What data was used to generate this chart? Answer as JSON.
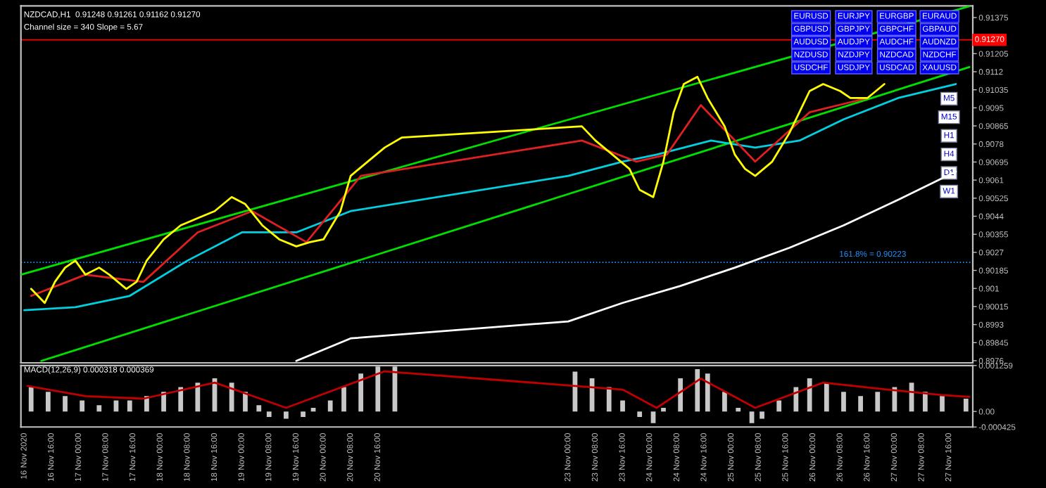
{
  "chart_data": [
    {
      "type": "line",
      "title": "NZDCAD,H1  0.91248 0.91261 0.91162 0.91270",
      "subtitle": "Channel size = 340 Slope = 5.67",
      "xlim": [
        "2020-11-16T07:00",
        "2020-11-27T23:00"
      ],
      "ylim": [
        0.8975,
        0.9143
      ],
      "tick_labels": "y",
      "yticks": [
        0.8976,
        0.89845,
        0.8993,
        0.90015,
        0.901,
        0.90185,
        0.9027,
        0.90355,
        0.9044,
        0.90525,
        0.9061,
        0.90695,
        0.9078,
        0.90865,
        0.9095,
        0.91035,
        0.9112,
        0.91205,
        0.91375
      ],
      "series": [
        {
          "color": "#00e000",
          "x": [
            "2020-11-16T07:00",
            "2020-11-27T22:00"
          ],
          "values": [
            0.90165,
            0.91428
          ]
        },
        {
          "color": "#00e000",
          "x": [
            "2020-11-16T13:00",
            "2020-11-27T22:00"
          ],
          "values": [
            0.89759,
            0.91142
          ]
        },
        {
          "color": "#ffffff",
          "x": [
            "2020-11-19T16:00",
            "2020-11-20T08:00",
            "2020-11-23T00:00",
            "2020-11-23T16:00",
            "2020-11-24T09:00",
            "2020-11-25T01:00",
            "2020-11-25T17:00",
            "2020-11-26T09:00",
            "2020-11-27T01:00",
            "2020-11-27T18:00"
          ],
          "values": [
            0.89759,
            0.89865,
            0.89945,
            0.90032,
            0.90112,
            0.90198,
            0.90291,
            0.90397,
            0.90517,
            0.9065
          ]
        },
        {
          "color": "#00d0e0",
          "x": [
            "2020-11-16T08:00",
            "2020-11-16T23:00",
            "2020-11-17T15:00",
            "2020-11-18T08:00",
            "2020-11-19T00:00",
            "2020-11-19T16:00",
            "2020-11-20T08:00",
            "2020-11-23T00:00",
            "2020-11-23T16:00",
            "2020-11-24T02:00",
            "2020-11-24T18:00",
            "2020-11-25T07:00",
            "2020-11-25T20:00",
            "2020-11-26T09:00",
            "2020-11-27T01:00",
            "2020-11-27T18:00"
          ],
          "values": [
            0.89998,
            0.90012,
            0.90065,
            0.90231,
            0.90364,
            0.90364,
            0.90464,
            0.9063,
            0.90697,
            0.9073,
            0.90796,
            0.90763,
            0.90796,
            0.90896,
            0.90996,
            0.91062
          ]
        },
        {
          "color": "#e02020",
          "x": [
            "2020-11-16T10:00",
            "2020-11-17T02:00",
            "2020-11-17T19:00",
            "2020-11-18T11:00",
            "2020-11-19T03:00",
            "2020-11-19T19:00",
            "2020-11-20T11:00",
            "2020-11-23T04:00",
            "2020-11-23T20:00",
            "2020-11-24T05:00",
            "2020-11-24T15:00",
            "2020-11-25T07:00",
            "2020-11-25T23:00",
            "2020-11-26T16:00"
          ],
          "values": [
            0.90065,
            0.90165,
            0.90131,
            0.90364,
            0.90464,
            0.90318,
            0.9063,
            0.90796,
            0.90697,
            0.9073,
            0.90963,
            0.90697,
            0.90929,
            0.90996
          ]
        },
        {
          "color": "#ffff00",
          "x": [
            "2020-11-16T10:00",
            "2020-11-16T14:00",
            "2020-11-16T17:00",
            "2020-11-16T20:00",
            "2020-11-16T23:00",
            "2020-11-17T02:00",
            "2020-11-17T06:00",
            "2020-11-17T09:00",
            "2020-11-17T14:00",
            "2020-11-17T17:00",
            "2020-11-17T20:00",
            "2020-11-18T01:00",
            "2020-11-18T06:00",
            "2020-11-18T11:00",
            "2020-11-18T16:00",
            "2020-11-18T21:00",
            "2020-11-19T01:00",
            "2020-11-19T06:00",
            "2020-11-19T11:00",
            "2020-11-19T16:00",
            "2020-11-19T20:00",
            "2020-11-20T00:00",
            "2020-11-20T05:00",
            "2020-11-20T08:00",
            "2020-11-20T13:00",
            "2020-11-20T18:00",
            "2020-11-20T23:00",
            "2020-11-23T04:00",
            "2020-11-23T08:00",
            "2020-11-23T13:00",
            "2020-11-23T18:00",
            "2020-11-23T21:00",
            "2020-11-24T01:00",
            "2020-11-24T04:00",
            "2020-11-24T07:00",
            "2020-11-24T10:00",
            "2020-11-24T14:00",
            "2020-11-24T17:00",
            "2020-11-24T22:00",
            "2020-11-25T01:00",
            "2020-11-25T04:00",
            "2020-11-25T07:00",
            "2020-11-25T12:00",
            "2020-11-25T17:00",
            "2020-11-25T20:00",
            "2020-11-25T23:00",
            "2020-11-26T03:00",
            "2020-11-26T08:00",
            "2020-11-26T11:00",
            "2020-11-26T16:00",
            "2020-11-26T21:00"
          ],
          "values": [
            0.90098,
            0.90032,
            0.90131,
            0.90198,
            0.90231,
            0.90165,
            0.90198,
            0.90165,
            0.90098,
            0.90131,
            0.90231,
            0.90331,
            0.90397,
            0.90431,
            0.90464,
            0.9053,
            0.90497,
            0.90397,
            0.90331,
            0.90298,
            0.90318,
            0.90331,
            0.90464,
            0.9063,
            0.90697,
            0.90763,
            0.9081,
            0.90863,
            0.90796,
            0.9073,
            0.90663,
            0.90564,
            0.9053,
            0.90697,
            0.90929,
            0.91062,
            0.91096,
            0.90996,
            0.90863,
            0.9073,
            0.90663,
            0.9063,
            0.90697,
            0.9083,
            0.90929,
            0.91029,
            0.91062,
            0.91029,
            0.90996,
            0.90996,
            0.91062
          ]
        }
      ],
      "ref_lines": [
        {
          "axis": "y",
          "value": 0.90223,
          "label": "161.8% = 0.90223",
          "color": "#1e90ff",
          "line_style": "dotted"
        },
        {
          "axis": "y",
          "value": 0.9127,
          "label": "0.91270",
          "color": "#ff0000"
        }
      ],
      "annotations": [
        "EURUSD",
        "EURJPY",
        "EURGBP",
        "EURAUD",
        "GBPUSD",
        "GBPJPY",
        "GBPCHF",
        "GBPAUD",
        "AUDUSD",
        "AUDJPY",
        "AUDCHF",
        "AUDNZD",
        "NZDUSD",
        "NZDJPY",
        "NZDCAD",
        "NZDCHF",
        "USDCHF",
        "USDJPY",
        "USDCAD",
        "XAUUSD",
        "M5",
        "M15",
        "H1",
        "H4",
        "D1",
        "W1"
      ]
    },
    {
      "type": "bar",
      "title": "MACD(12,26,9) 0.000318 0.000369",
      "xlim": [
        "2020-11-16T07:00",
        "2020-11-27T23:00"
      ],
      "ylim": [
        -0.000425,
        0.001259
      ],
      "yticks": [
        -0.000425,
        {
          "value": 0,
          "label": "0.00"
        },
        0.001259
      ],
      "xticks": [
        {
          "value": "2020-11-16T08:00",
          "label": "16 Nov 2020"
        },
        {
          "value": "2020-11-16T16:00",
          "label": "16 Nov 16:00"
        },
        {
          "value": "2020-11-17T00:00",
          "label": "17 Nov 00:00"
        },
        {
          "value": "2020-11-17T08:00",
          "label": "17 Nov 08:00"
        },
        {
          "value": "2020-11-17T16:00",
          "label": "17 Nov 16:00"
        },
        {
          "value": "2020-11-18T00:00",
          "label": "18 Nov 00:00"
        },
        {
          "value": "2020-11-18T08:00",
          "label": "18 Nov 08:00"
        },
        {
          "value": "2020-11-18T16:00",
          "label": "18 Nov 16:00"
        },
        {
          "value": "2020-11-19T00:00",
          "label": "19 Nov 00:00"
        },
        {
          "value": "2020-11-19T08:00",
          "label": "19 Nov 08:00"
        },
        {
          "value": "2020-11-19T16:00",
          "label": "19 Nov 16:00"
        },
        {
          "value": "2020-11-20T00:00",
          "label": "20 Nov 00:00"
        },
        {
          "value": "2020-11-20T08:00",
          "label": "20 Nov 08:00"
        },
        {
          "value": "2020-11-20T16:00",
          "label": "20 Nov 16:00"
        },
        {
          "value": "2020-11-23T00:00",
          "label": "23 Nov 00:00"
        },
        {
          "value": "2020-11-23T08:00",
          "label": "23 Nov 08:00"
        },
        {
          "value": "2020-11-23T16:00",
          "label": "23 Nov 16:00"
        },
        {
          "value": "2020-11-24T00:00",
          "label": "24 Nov 00:00"
        },
        {
          "value": "2020-11-24T08:00",
          "label": "24 Nov 08:00"
        },
        {
          "value": "2020-11-24T16:00",
          "label": "24 Nov 16:00"
        },
        {
          "value": "2020-11-25T00:00",
          "label": "25 Nov 00:00"
        },
        {
          "value": "2020-11-25T08:00",
          "label": "25 Nov 08:00"
        },
        {
          "value": "2020-11-25T16:00",
          "label": "25 Nov 16:00"
        },
        {
          "value": "2020-11-26T00:00",
          "label": "26 Nov 00:00"
        },
        {
          "value": "2020-11-26T08:00",
          "label": "26 Nov 08:00"
        },
        {
          "value": "2020-11-26T16:00",
          "label": "26 Nov 16:00"
        },
        {
          "value": "2020-11-27T00:00",
          "label": "27 Nov 00:00"
        },
        {
          "value": "2020-11-27T08:00",
          "label": "27 Nov 08:00"
        },
        {
          "value": "2020-11-27T16:00",
          "label": "27 Nov 16:00"
        }
      ],
      "series": [
        {
          "color": "#c8c8c8",
          "x": [
            "2020-11-16T10:00",
            "2020-11-16T15:00",
            "2020-11-16T20:00",
            "2020-11-17T01:00",
            "2020-11-17T06:00",
            "2020-11-17T11:00",
            "2020-11-17T15:00",
            "2020-11-17T20:00",
            "2020-11-18T01:00",
            "2020-11-18T06:00",
            "2020-11-18T11:00",
            "2020-11-18T16:00",
            "2020-11-18T21:00",
            "2020-11-19T01:00",
            "2020-11-19T05:00",
            "2020-11-19T08:00",
            "2020-11-19T13:00",
            "2020-11-19T18:00",
            "2020-11-19T21:00",
            "2020-11-20T02:00",
            "2020-11-20T06:00",
            "2020-11-20T11:00",
            "2020-11-20T16:00",
            "2020-11-20T21:00",
            "2020-11-23T02:00",
            "2020-11-23T07:00",
            "2020-11-23T12:00",
            "2020-11-23T16:00",
            "2020-11-23T21:00",
            "2020-11-24T01:00",
            "2020-11-24T04:00",
            "2020-11-24T09:00",
            "2020-11-24T14:00",
            "2020-11-24T17:00",
            "2020-11-24T22:00",
            "2020-11-25T02:00",
            "2020-11-25T06:00",
            "2020-11-25T09:00",
            "2020-11-25T14:00",
            "2020-11-25T19:00",
            "2020-11-25T23:00",
            "2020-11-26T04:00",
            "2020-11-26T09:00",
            "2020-11-26T14:00",
            "2020-11-26T19:00",
            "2020-11-27T00:00",
            "2020-11-27T05:00",
            "2020-11-27T09:00",
            "2020-11-27T14:00",
            "2020-11-27T21:00"
          ],
          "values": [
            0.00067,
            0.00054,
            0.00042,
            0.0003,
            0.00017,
            0.0003,
            0.0003,
            0.00042,
            0.00054,
            0.00067,
            0.00079,
            0.00091,
            0.00079,
            0.00054,
            0.00017,
            -0.00015,
            -0.0002,
            -0.00015,
            0.0001,
            0.0003,
            0.00067,
            0.00104,
            0.00123,
            0.00123,
            0.00109,
            0.00091,
            0.00067,
            0.0003,
            -0.00015,
            -0.00032,
            0.0001,
            0.00091,
            0.00116,
            0.00104,
            0.00054,
            0.0001,
            -0.00032,
            -0.0002,
            0.0003,
            0.00067,
            0.00091,
            0.00079,
            0.00054,
            0.00042,
            0.00054,
            0.00067,
            0.00079,
            0.00054,
            0.00042,
            0.00035
          ]
        },
        {
          "type": "line",
          "color": "#c00000",
          "x": [
            "2020-11-16T09:00",
            "2020-11-17T02:00",
            "2020-11-17T19:00",
            "2020-11-18T16:00",
            "2020-11-19T13:00",
            "2020-11-20T18:00",
            "2020-11-23T16:00",
            "2020-11-24T02:00",
            "2020-11-24T15:00",
            "2020-11-25T07:00",
            "2020-11-26T03:00",
            "2020-11-26T22:00",
            "2020-11-27T14:00",
            "2020-11-27T22:00"
          ],
          "values": [
            0.0007,
            0.00042,
            0.00035,
            0.00079,
            0.0001,
            0.0011,
            0.0006,
            0.0001,
            0.0009,
            0.0001,
            0.00079,
            0.0006,
            0.00045,
            0.0004
          ]
        }
      ]
    }
  ]
}
